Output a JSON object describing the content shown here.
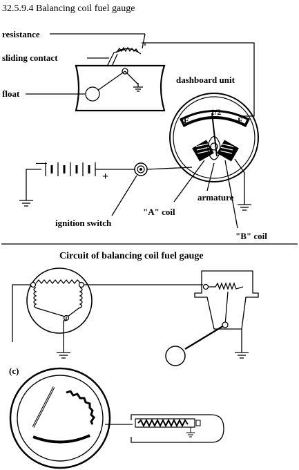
{
  "section_title": "32.5.9.4 Balancing coil fuel gauge",
  "labels": {
    "resistance": "resistance",
    "sliding_contact": "sliding contact",
    "float": "float",
    "dashboard_unit": "dashboard unit",
    "armature": "armature",
    "a_coil": "\"A\" coil",
    "b_coil": "\"B\" coil",
    "ignition_switch": "ignition switch",
    "battery_minus": "—",
    "battery_plus": "+",
    "gauge_e": "E",
    "gauge_half": "1/2",
    "gauge_f": "F"
  },
  "circuit_caption": "Circuit of balancing coil fuel gauge",
  "panel_c_label": "(c)"
}
